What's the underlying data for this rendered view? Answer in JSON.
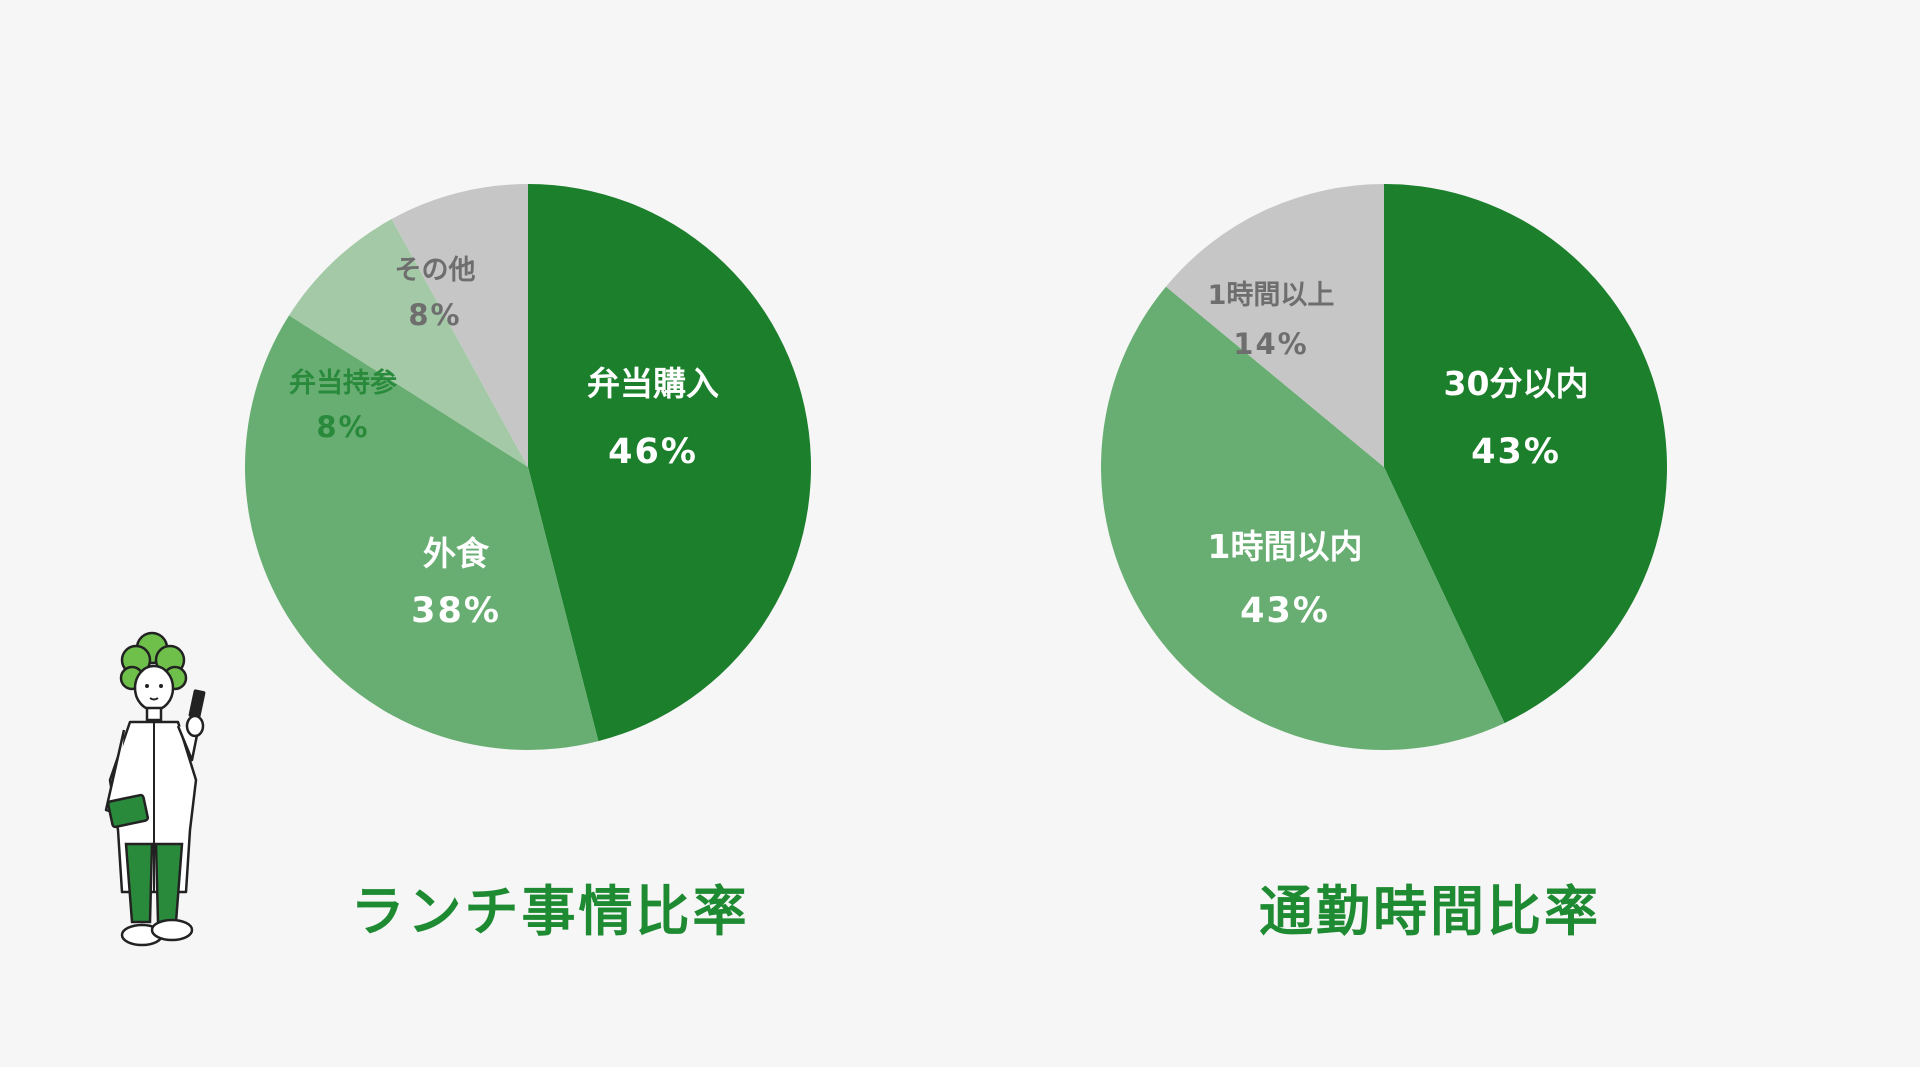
{
  "chart_data": [
    {
      "type": "pie",
      "title": "ランチ事情比率",
      "start_angle_deg": 0,
      "direction": "clockwise",
      "slices": [
        {
          "label": "弁当購入",
          "value": 46,
          "value_label": "46%",
          "color": "#1b7f2b",
          "text_color": "#ffffff"
        },
        {
          "label": "外食",
          "value": 38,
          "value_label": "38%",
          "color": "#68ae72",
          "text_color": "#ffffff"
        },
        {
          "label": "弁当持参",
          "value": 8,
          "value_label": "8%",
          "color": "#a4c9a6",
          "text_color": "#2a8a3c"
        },
        {
          "label": "その他",
          "value": 8,
          "value_label": "8%",
          "color": "#c6c6c6",
          "text_color": "#6e6e6e"
        }
      ]
    },
    {
      "type": "pie",
      "title": "通勤時間比率",
      "start_angle_deg": 0,
      "direction": "clockwise",
      "slices": [
        {
          "label": "30分以内",
          "value": 43,
          "value_label": "43%",
          "color": "#1b7f2b",
          "text_color": "#ffffff"
        },
        {
          "label": "1時間以内",
          "value": 43,
          "value_label": "43%",
          "color": "#68ae72",
          "text_color": "#ffffff"
        },
        {
          "label": "1時間以上",
          "value": 14,
          "value_label": "14%",
          "color": "#c6c6c6",
          "text_color": "#6e6e6e"
        }
      ]
    }
  ],
  "illustration": {
    "icon": "person-with-phone-icon",
    "hair_color": "#6fc04a",
    "pants_color": "#2a8a3c"
  }
}
